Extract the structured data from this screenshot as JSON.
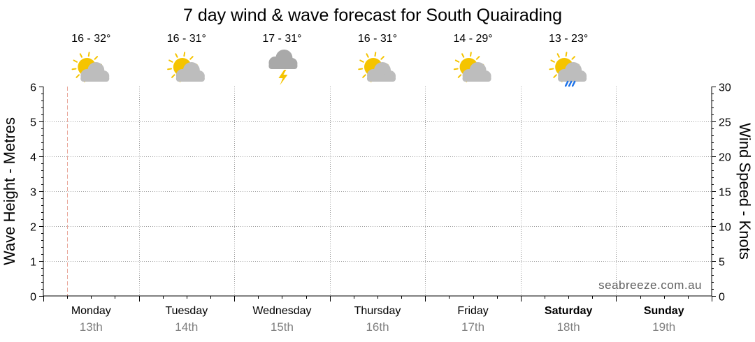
{
  "chart_data": {
    "type": "line",
    "title": "7 day wind & wave forecast for South Quairading",
    "ylabel_left": "Wave Height - Metres",
    "ylabel_right": "Wind Speed - Knots",
    "ylim_left": [
      0,
      6
    ],
    "ylim_right": [
      0,
      30
    ],
    "yticks_left": [
      "0",
      "1",
      "2",
      "3",
      "4",
      "5",
      "6"
    ],
    "yticks_right": [
      "0",
      "5",
      "10",
      "15",
      "20",
      "25",
      "30"
    ],
    "grid": true,
    "series": [],
    "now_marker_position_days": 0.25,
    "watermark": "seabreeze.com.au",
    "days": [
      {
        "name": "Monday",
        "date": "13th",
        "temps": "16 - 32°",
        "icon": "sun-cloud-icon",
        "bold": false
      },
      {
        "name": "Tuesday",
        "date": "14th",
        "temps": "16 - 31°",
        "icon": "sun-cloud-icon",
        "bold": false
      },
      {
        "name": "Wednesday",
        "date": "15th",
        "temps": "17 - 31°",
        "icon": "storm-icon",
        "bold": false
      },
      {
        "name": "Thursday",
        "date": "16th",
        "temps": "16 - 31°",
        "icon": "sun-cloud-icon",
        "bold": false
      },
      {
        "name": "Friday",
        "date": "17th",
        "temps": "14 - 29°",
        "icon": "sun-cloud-icon",
        "bold": false
      },
      {
        "name": "Saturday",
        "date": "18th",
        "temps": "13 - 23°",
        "icon": "sun-cloud-rain-icon",
        "bold": true
      },
      {
        "name": "Sunday",
        "date": "19th",
        "temps": "",
        "icon": "",
        "bold": true
      }
    ],
    "colors": {
      "sun": "#F5C400",
      "cloud": "#BDBDBD",
      "storm_cloud": "#A9A9A9",
      "lightning": "#F5C400",
      "rain": "#1E73E8",
      "now_marker": "#E9A79A",
      "grid": "#9A9A9A",
      "date_text": "#808080"
    }
  }
}
